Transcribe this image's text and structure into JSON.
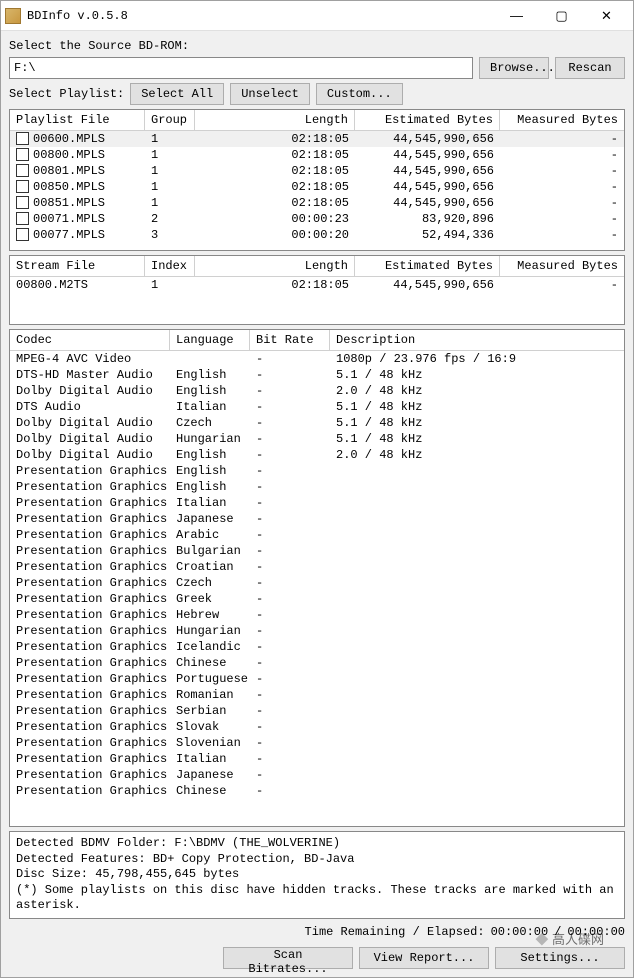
{
  "window": {
    "title": "BDInfo v.0.5.8"
  },
  "source": {
    "label": "Select the Source BD-ROM:",
    "path": "F:\\",
    "browse": "Browse...",
    "rescan": "Rescan"
  },
  "playlist_bar": {
    "label": "Select Playlist:",
    "select_all": "Select All",
    "unselect": "Unselect",
    "custom": "Custom..."
  },
  "playlist_table": {
    "headers": {
      "file": "Playlist File",
      "group": "Group",
      "length": "Length",
      "ebytes": "Estimated Bytes",
      "mbytes": "Measured Bytes"
    },
    "rows": [
      {
        "file": "00600.MPLS",
        "group": "1",
        "length": "02:18:05",
        "ebytes": "44,545,990,656",
        "mbytes": "-",
        "sel": true
      },
      {
        "file": "00800.MPLS",
        "group": "1",
        "length": "02:18:05",
        "ebytes": "44,545,990,656",
        "mbytes": "-"
      },
      {
        "file": "00801.MPLS",
        "group": "1",
        "length": "02:18:05",
        "ebytes": "44,545,990,656",
        "mbytes": "-"
      },
      {
        "file": "00850.MPLS",
        "group": "1",
        "length": "02:18:05",
        "ebytes": "44,545,990,656",
        "mbytes": "-"
      },
      {
        "file": "00851.MPLS",
        "group": "1",
        "length": "02:18:05",
        "ebytes": "44,545,990,656",
        "mbytes": "-"
      },
      {
        "file": "00071.MPLS",
        "group": "2",
        "length": "00:00:23",
        "ebytes": "83,920,896",
        "mbytes": "-"
      },
      {
        "file": "00077.MPLS",
        "group": "3",
        "length": "00:00:20",
        "ebytes": "52,494,336",
        "mbytes": "-"
      }
    ]
  },
  "stream_table": {
    "headers": {
      "file": "Stream File",
      "index": "Index",
      "length": "Length",
      "ebytes": "Estimated Bytes",
      "mbytes": "Measured Bytes"
    },
    "rows": [
      {
        "file": "00800.M2TS",
        "index": "1",
        "length": "02:18:05",
        "ebytes": "44,545,990,656",
        "mbytes": "-"
      }
    ]
  },
  "codec_table": {
    "headers": {
      "codec": "Codec",
      "lang": "Language",
      "rate": "Bit Rate",
      "desc": "Description"
    },
    "rows": [
      {
        "codec": "MPEG-4 AVC Video",
        "lang": "",
        "rate": "-",
        "desc": "1080p / 23.976 fps / 16:9"
      },
      {
        "codec": "DTS-HD Master Audio",
        "lang": "English",
        "rate": "-",
        "desc": "5.1 / 48 kHz"
      },
      {
        "codec": "Dolby Digital Audio",
        "lang": "English",
        "rate": "-",
        "desc": "2.0 / 48 kHz"
      },
      {
        "codec": "DTS Audio",
        "lang": "Italian",
        "rate": "-",
        "desc": "5.1 / 48 kHz"
      },
      {
        "codec": "Dolby Digital Audio",
        "lang": "Czech",
        "rate": "-",
        "desc": "5.1 / 48 kHz"
      },
      {
        "codec": "Dolby Digital Audio",
        "lang": "Hungarian",
        "rate": "-",
        "desc": "5.1 / 48 kHz"
      },
      {
        "codec": "Dolby Digital Audio",
        "lang": "English",
        "rate": "-",
        "desc": "2.0 / 48 kHz"
      },
      {
        "codec": "Presentation Graphics",
        "lang": "English",
        "rate": "-",
        "desc": ""
      },
      {
        "codec": "Presentation Graphics",
        "lang": "English",
        "rate": "-",
        "desc": ""
      },
      {
        "codec": "Presentation Graphics",
        "lang": "Italian",
        "rate": "-",
        "desc": ""
      },
      {
        "codec": "Presentation Graphics",
        "lang": "Japanese",
        "rate": "-",
        "desc": ""
      },
      {
        "codec": "Presentation Graphics",
        "lang": "Arabic",
        "rate": "-",
        "desc": ""
      },
      {
        "codec": "Presentation Graphics",
        "lang": "Bulgarian",
        "rate": "-",
        "desc": ""
      },
      {
        "codec": "Presentation Graphics",
        "lang": "Croatian",
        "rate": "-",
        "desc": ""
      },
      {
        "codec": "Presentation Graphics",
        "lang": "Czech",
        "rate": "-",
        "desc": ""
      },
      {
        "codec": "Presentation Graphics",
        "lang": "Greek",
        "rate": "-",
        "desc": ""
      },
      {
        "codec": "Presentation Graphics",
        "lang": "Hebrew",
        "rate": "-",
        "desc": ""
      },
      {
        "codec": "Presentation Graphics",
        "lang": "Hungarian",
        "rate": "-",
        "desc": ""
      },
      {
        "codec": "Presentation Graphics",
        "lang": "Icelandic",
        "rate": "-",
        "desc": ""
      },
      {
        "codec": "Presentation Graphics",
        "lang": "Chinese",
        "rate": "-",
        "desc": ""
      },
      {
        "codec": "Presentation Graphics",
        "lang": "Portuguese",
        "rate": "-",
        "desc": ""
      },
      {
        "codec": "Presentation Graphics",
        "lang": "Romanian",
        "rate": "-",
        "desc": ""
      },
      {
        "codec": "Presentation Graphics",
        "lang": "Serbian",
        "rate": "-",
        "desc": ""
      },
      {
        "codec": "Presentation Graphics",
        "lang": "Slovak",
        "rate": "-",
        "desc": ""
      },
      {
        "codec": "Presentation Graphics",
        "lang": "Slovenian",
        "rate": "-",
        "desc": ""
      },
      {
        "codec": "Presentation Graphics",
        "lang": "Italian",
        "rate": "-",
        "desc": ""
      },
      {
        "codec": "Presentation Graphics",
        "lang": "Japanese",
        "rate": "-",
        "desc": ""
      },
      {
        "codec": "Presentation Graphics",
        "lang": "Chinese",
        "rate": "-",
        "desc": ""
      }
    ]
  },
  "info": {
    "line1": "Detected BDMV Folder: F:\\BDMV (THE_WOLVERINE)",
    "line2": "Detected Features: BD+ Copy Protection, BD-Java",
    "line3": "Disc Size: 45,798,455,645 bytes",
    "line4": "(*) Some playlists on this disc have hidden tracks. These tracks are marked with an asterisk."
  },
  "status": {
    "label": "Time Remaining / Elapsed:",
    "remaining": "00:00:00",
    "sep": "/",
    "elapsed": "00:00:00"
  },
  "buttons": {
    "scan": "Scan Bitrates...",
    "report": "View Report...",
    "settings": "Settings..."
  },
  "watermark": "高人碟网"
}
